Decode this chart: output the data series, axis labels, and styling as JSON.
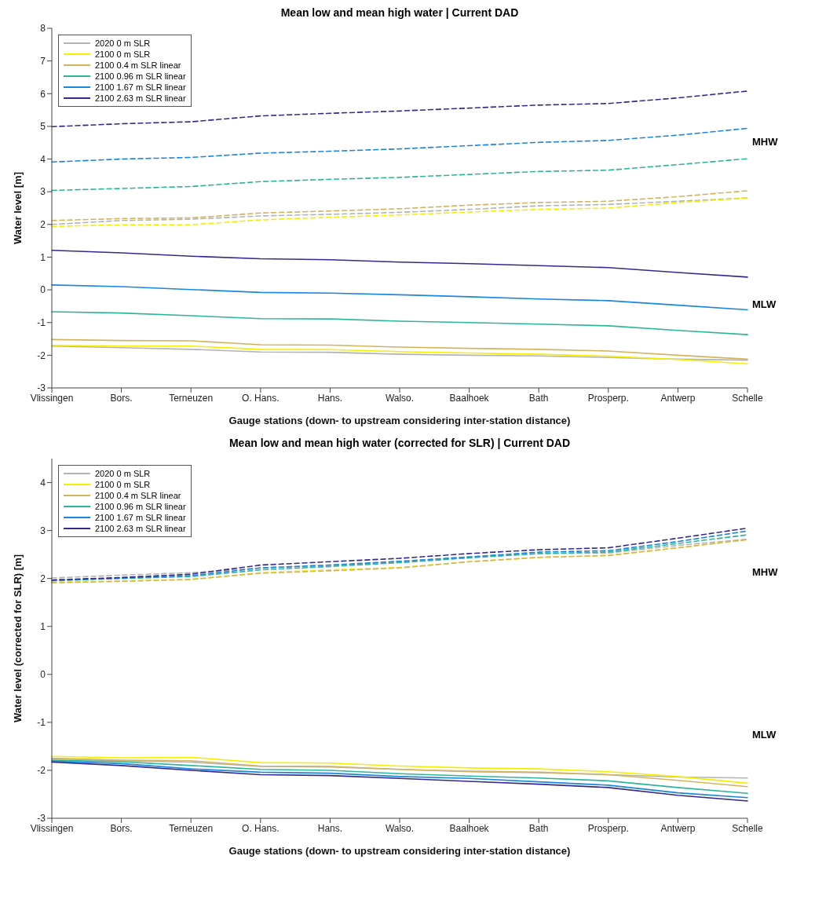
{
  "chart_data": [
    {
      "type": "line",
      "title": "Mean low and mean high water | Current DAD",
      "xlabel": "Gauge stations (down- to upstream considering inter-station distance)",
      "ylabel": "Water level [m]",
      "categories": [
        "Vlissingen",
        "Bors.",
        "Terneuzen",
        "O. Hans.",
        "Hans.",
        "Walso.",
        "Baalhoek",
        "Bath",
        "Prosperp.",
        "Antwerp",
        "Schelle"
      ],
      "ylim": [
        -3,
        8
      ],
      "yticks": [
        -3,
        -2,
        -1,
        0,
        1,
        2,
        3,
        4,
        5,
        6,
        7,
        8
      ],
      "legend": "top left",
      "line_style": "solid",
      "annotations": [
        "MHW",
        "MLW"
      ],
      "series": [
        {
          "name": "2020 0 m SLR",
          "color": "#b3b3b3",
          "values": [
            -1.72,
            -1.77,
            -1.82,
            -1.9,
            -1.91,
            -1.97,
            -2.0,
            -2.02,
            -2.07,
            -2.12,
            -2.15
          ]
        },
        {
          "name": "2100 0 m SLR",
          "color": "#f5ee00",
          "values": [
            -1.7,
            -1.72,
            -1.72,
            -1.82,
            -1.83,
            -1.89,
            -1.93,
            -1.97,
            -2.03,
            -2.13,
            -2.26
          ]
        },
        {
          "name": "2100 0.4 m SLR linear",
          "color": "#d4b35e",
          "values": [
            -1.52,
            -1.55,
            -1.56,
            -1.68,
            -1.69,
            -1.75,
            -1.79,
            -1.82,
            -1.87,
            -2.0,
            -2.12
          ]
        },
        {
          "name": "2100 0.96 m SLR linear",
          "color": "#2bb69a",
          "values": [
            -0.67,
            -0.71,
            -0.79,
            -0.88,
            -0.89,
            -0.96,
            -1.0,
            -1.05,
            -1.1,
            -1.24,
            -1.37
          ]
        },
        {
          "name": "2100 1.67 m SLR linear",
          "color": "#1a86e0",
          "values": [
            0.15,
            0.1,
            0.01,
            -0.08,
            -0.1,
            -0.15,
            -0.21,
            -0.28,
            -0.33,
            -0.47,
            -0.61
          ]
        },
        {
          "name": "2100 2.63 m SLR linear",
          "color": "#35298f",
          "values": [
            1.21,
            1.13,
            1.03,
            0.95,
            0.92,
            0.85,
            0.8,
            0.74,
            0.68,
            0.53,
            0.39
          ]
        },
        {
          "color": "#b3b3b3",
          "line_style": "dashed",
          "values": [
            2.0,
            2.12,
            2.16,
            2.26,
            2.31,
            2.37,
            2.46,
            2.57,
            2.61,
            2.71,
            2.81
          ]
        },
        {
          "color": "#f5ee00",
          "line_style": "dashed",
          "values": [
            1.94,
            1.99,
            1.99,
            2.14,
            2.22,
            2.29,
            2.38,
            2.46,
            2.5,
            2.67,
            2.81
          ]
        },
        {
          "color": "#d4b35e",
          "line_style": "dashed",
          "values": [
            2.12,
            2.18,
            2.2,
            2.35,
            2.41,
            2.48,
            2.59,
            2.67,
            2.71,
            2.85,
            3.03
          ]
        },
        {
          "color": "#2bb69a",
          "line_style": "dashed",
          "values": [
            3.04,
            3.1,
            3.16,
            3.31,
            3.38,
            3.44,
            3.53,
            3.62,
            3.66,
            3.83,
            4.01
          ]
        },
        {
          "color": "#1a86e0",
          "line_style": "dashed",
          "values": [
            3.91,
            4.0,
            4.05,
            4.18,
            4.24,
            4.31,
            4.41,
            4.51,
            4.57,
            4.73,
            4.94
          ]
        },
        {
          "color": "#35298f",
          "line_style": "dashed",
          "values": [
            4.99,
            5.08,
            5.14,
            5.32,
            5.4,
            5.47,
            5.56,
            5.65,
            5.7,
            5.87,
            6.08
          ]
        }
      ]
    },
    {
      "type": "line",
      "title": "Mean low and mean high water (corrected for SLR) | Current DAD",
      "xlabel": "Gauge stations (down- to upstream considering inter-station distance)",
      "ylabel": "Water level (corrected for SLR) [m]",
      "categories": [
        "Vlissingen",
        "Bors.",
        "Terneuzen",
        "O. Hans.",
        "Hans.",
        "Walso.",
        "Baalhoek",
        "Bath",
        "Prosperp.",
        "Antwerp",
        "Schelle"
      ],
      "ylim": [
        -3,
        4.5
      ],
      "yticks": [
        -3,
        -2,
        -1,
        0,
        1,
        2,
        3,
        4
      ],
      "legend": "top left",
      "line_style": "solid",
      "annotations": [
        "MHW",
        "MLW"
      ],
      "series": [
        {
          "name": "2020 0 m SLR",
          "color": "#b3b3b3",
          "values": [
            -1.76,
            -1.8,
            -1.83,
            -1.92,
            -1.93,
            -1.98,
            -2.03,
            -2.05,
            -2.09,
            -2.14,
            -2.16
          ]
        },
        {
          "name": "2100 0 m SLR",
          "color": "#f5ee00",
          "values": [
            -1.71,
            -1.74,
            -1.73,
            -1.84,
            -1.85,
            -1.91,
            -1.95,
            -1.97,
            -2.03,
            -2.13,
            -2.27
          ]
        },
        {
          "name": "2100 0.4 m SLR linear",
          "color": "#d4b35e",
          "values": [
            -1.75,
            -1.79,
            -1.8,
            -1.91,
            -1.92,
            -1.98,
            -2.02,
            -2.04,
            -2.09,
            -2.21,
            -2.34
          ]
        },
        {
          "name": "2100 0.96 m SLR linear",
          "color": "#2bb69a",
          "values": [
            -1.79,
            -1.82,
            -1.9,
            -1.98,
            -2.0,
            -2.07,
            -2.12,
            -2.16,
            -2.22,
            -2.36,
            -2.48
          ]
        },
        {
          "name": "2100 1.67 m SLR linear",
          "color": "#1a86e0",
          "values": [
            -1.81,
            -1.86,
            -1.97,
            -2.04,
            -2.06,
            -2.13,
            -2.17,
            -2.24,
            -2.31,
            -2.47,
            -2.57
          ]
        },
        {
          "name": "2100 2.63 m SLR linear",
          "color": "#35298f",
          "values": [
            -1.83,
            -1.9,
            -2.0,
            -2.09,
            -2.11,
            -2.17,
            -2.23,
            -2.29,
            -2.36,
            -2.52,
            -2.64
          ]
        },
        {
          "color": "#b3b3b3",
          "line_style": "dashed",
          "values": [
            2.01,
            2.07,
            2.12,
            2.22,
            2.28,
            2.34,
            2.45,
            2.52,
            2.53,
            2.69,
            2.82
          ]
        },
        {
          "color": "#f5ee00",
          "line_style": "dashed",
          "values": [
            1.92,
            1.95,
            1.98,
            2.12,
            2.18,
            2.23,
            2.35,
            2.44,
            2.48,
            2.64,
            2.81
          ]
        },
        {
          "color": "#d4b35e",
          "line_style": "dashed",
          "values": [
            1.91,
            1.94,
            1.98,
            2.11,
            2.16,
            2.22,
            2.35,
            2.44,
            2.48,
            2.64,
            2.81
          ]
        },
        {
          "color": "#2bb69a",
          "line_style": "dashed",
          "values": [
            1.95,
            2.0,
            2.04,
            2.18,
            2.25,
            2.33,
            2.43,
            2.52,
            2.55,
            2.73,
            2.91
          ]
        },
        {
          "color": "#1a86e0",
          "line_style": "dashed",
          "values": [
            1.96,
            2.01,
            2.06,
            2.22,
            2.28,
            2.36,
            2.45,
            2.55,
            2.58,
            2.77,
            2.99
          ]
        },
        {
          "color": "#35298f",
          "line_style": "dashed",
          "values": [
            1.97,
            2.02,
            2.09,
            2.28,
            2.35,
            2.42,
            2.52,
            2.6,
            2.64,
            2.84,
            3.05
          ]
        }
      ]
    }
  ]
}
